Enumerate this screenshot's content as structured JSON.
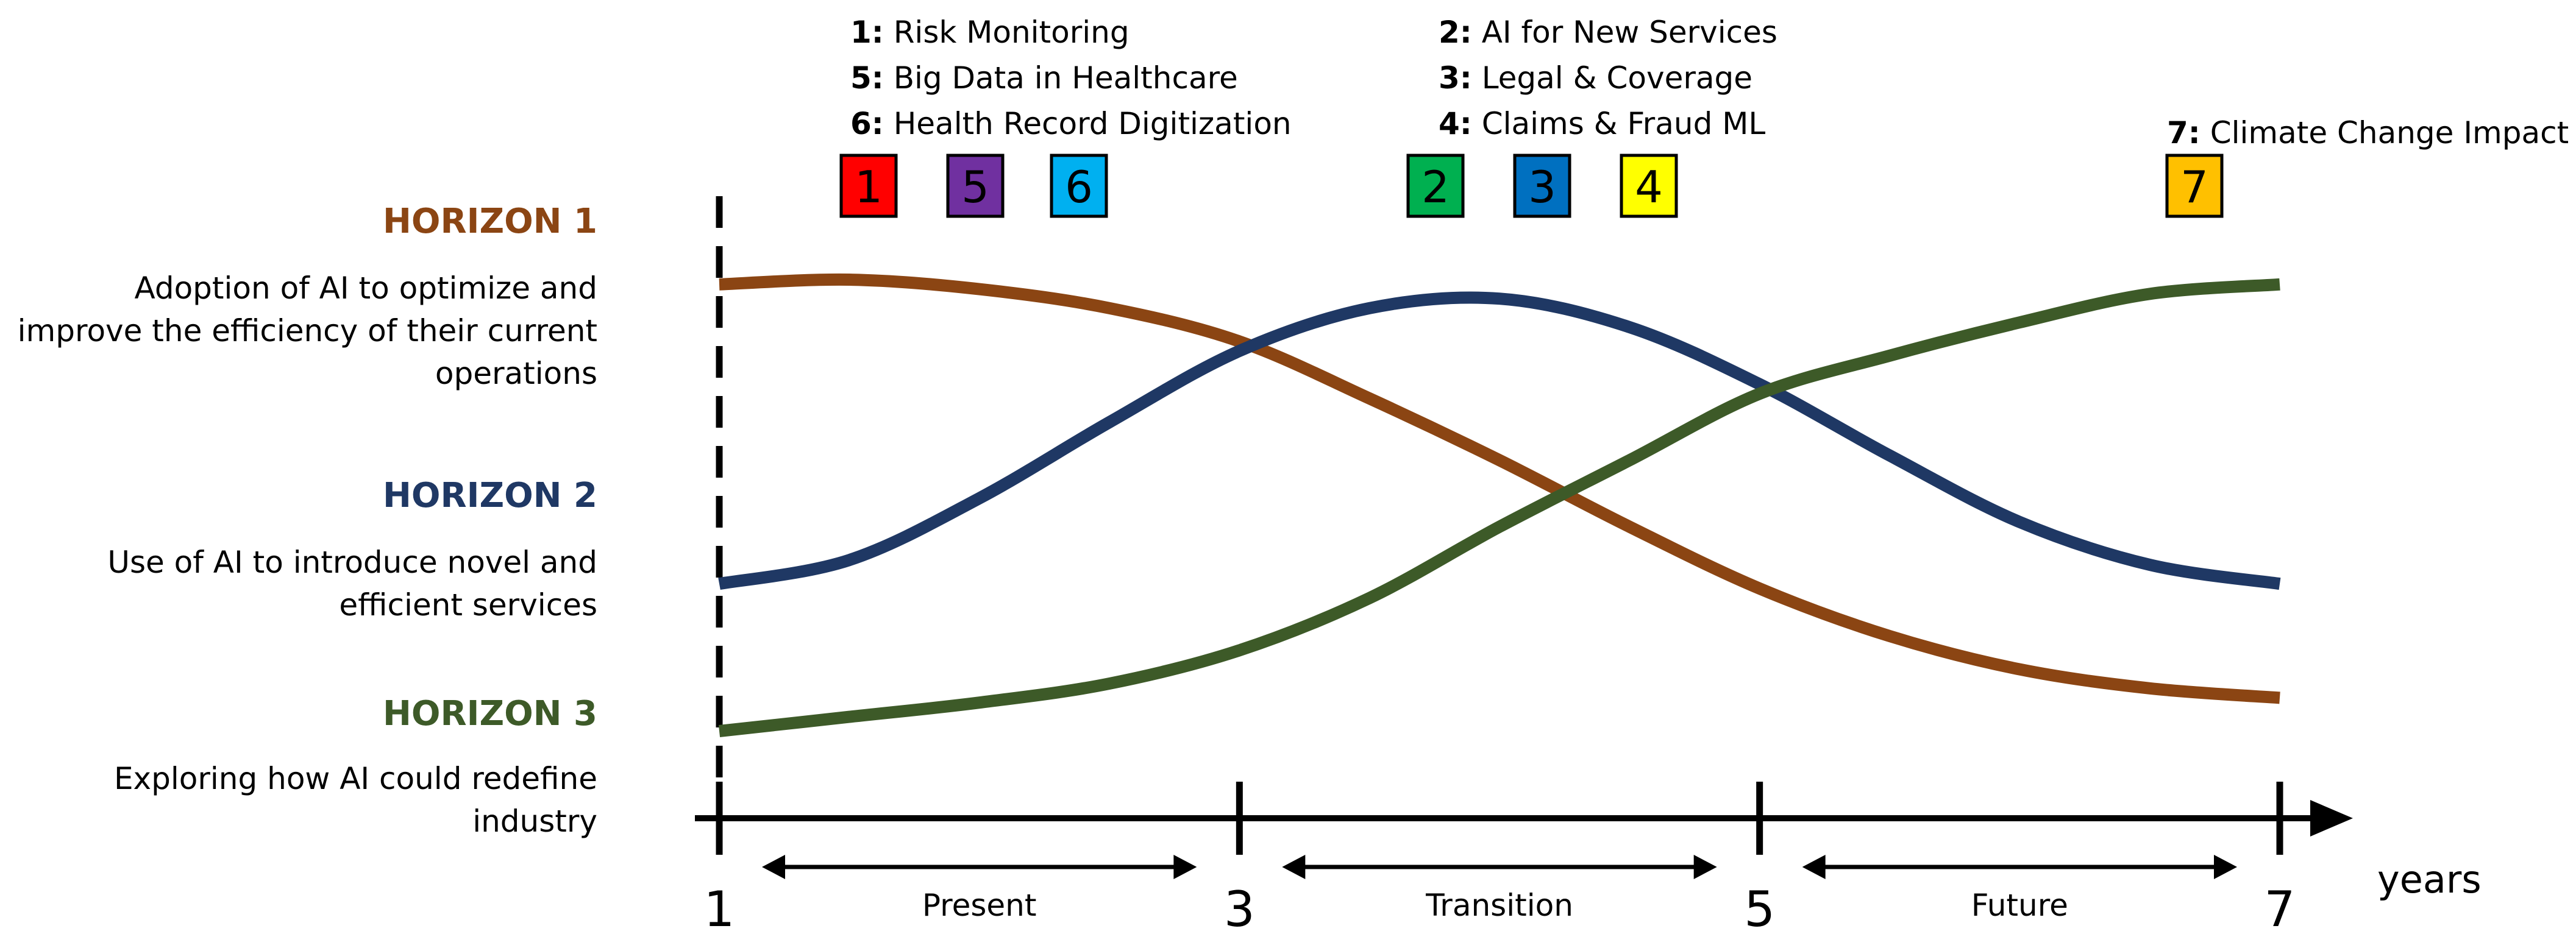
{
  "chart_data": {
    "type": "line",
    "x_unit": "years",
    "xlim": [
      1,
      7
    ],
    "ylim": [
      0,
      1
    ],
    "x_ticks": [
      "1",
      "3",
      "5",
      "7"
    ],
    "periods": [
      {
        "label": "Present",
        "from": 1,
        "to": 3
      },
      {
        "label": "Transition",
        "from": 3,
        "to": 5
      },
      {
        "label": "Future",
        "from": 5,
        "to": 7
      }
    ],
    "horizons": [
      {
        "title": "HORIZON 1",
        "color": "#8B4513",
        "description": [
          "Adoption of AI to optimize and",
          "improve the efficiency of their current",
          "operations"
        ]
      },
      {
        "title": "HORIZON 2",
        "color": "#1F3864",
        "description": [
          "Use of AI to introduce novel and",
          "efficient services"
        ]
      },
      {
        "title": "HORIZON 3",
        "color": "#3D5A28",
        "description": [
          "Exploring how AI could redefine",
          "industry"
        ]
      }
    ],
    "series": [
      {
        "key": "h1",
        "color": "#8B4513",
        "x": [
          1,
          1.5,
          2,
          2.5,
          3,
          3.5,
          4,
          4.5,
          5,
          5.5,
          6,
          6.5,
          7
        ],
        "y": [
          0.94,
          0.95,
          0.93,
          0.89,
          0.82,
          0.7,
          0.57,
          0.43,
          0.3,
          0.2,
          0.13,
          0.09,
          0.07
        ]
      },
      {
        "key": "h2",
        "color": "#1F3864",
        "x": [
          1,
          1.5,
          2,
          2.5,
          3,
          3.5,
          4,
          4.5,
          5,
          5.5,
          6,
          6.5,
          7
        ],
        "y": [
          0.31,
          0.36,
          0.49,
          0.65,
          0.8,
          0.89,
          0.91,
          0.85,
          0.73,
          0.58,
          0.44,
          0.35,
          0.31
        ]
      },
      {
        "key": "h3",
        "color": "#3D5A28",
        "x": [
          1,
          1.5,
          2,
          2.5,
          3,
          3.5,
          4,
          4.5,
          5,
          5.5,
          6,
          6.5,
          7
        ],
        "y": [
          0.0,
          0.03,
          0.06,
          0.1,
          0.17,
          0.28,
          0.43,
          0.57,
          0.71,
          0.79,
          0.86,
          0.92,
          0.94
        ]
      }
    ],
    "legend_groups": [
      {
        "items": [
          {
            "num": "1:",
            "text": " Risk Monitoring"
          },
          {
            "num": "5:",
            "text": " Big Data in Healthcare"
          },
          {
            "num": "6:",
            "text": " Health Record Digitization"
          }
        ]
      },
      {
        "items": [
          {
            "num": "2:",
            "text": " AI for New Services"
          },
          {
            "num": "3:",
            "text": " Legal & Coverage"
          },
          {
            "num": "4:",
            "text": " Claims & Fraud ML"
          }
        ]
      },
      {
        "items": [
          {
            "num": "7:",
            "text": " Climate Change Impact"
          }
        ]
      }
    ],
    "badges": [
      {
        "label": "1",
        "color": "#FF0000"
      },
      {
        "label": "5",
        "color": "#7030A0"
      },
      {
        "label": "6",
        "color": "#00B0F0"
      },
      {
        "label": "2",
        "color": "#00B050"
      },
      {
        "label": "3",
        "color": "#0070C0"
      },
      {
        "label": "4",
        "color": "#FFFF00"
      },
      {
        "label": "7",
        "color": "#FFC000"
      }
    ]
  },
  "axis": {
    "unit_label": "years"
  }
}
